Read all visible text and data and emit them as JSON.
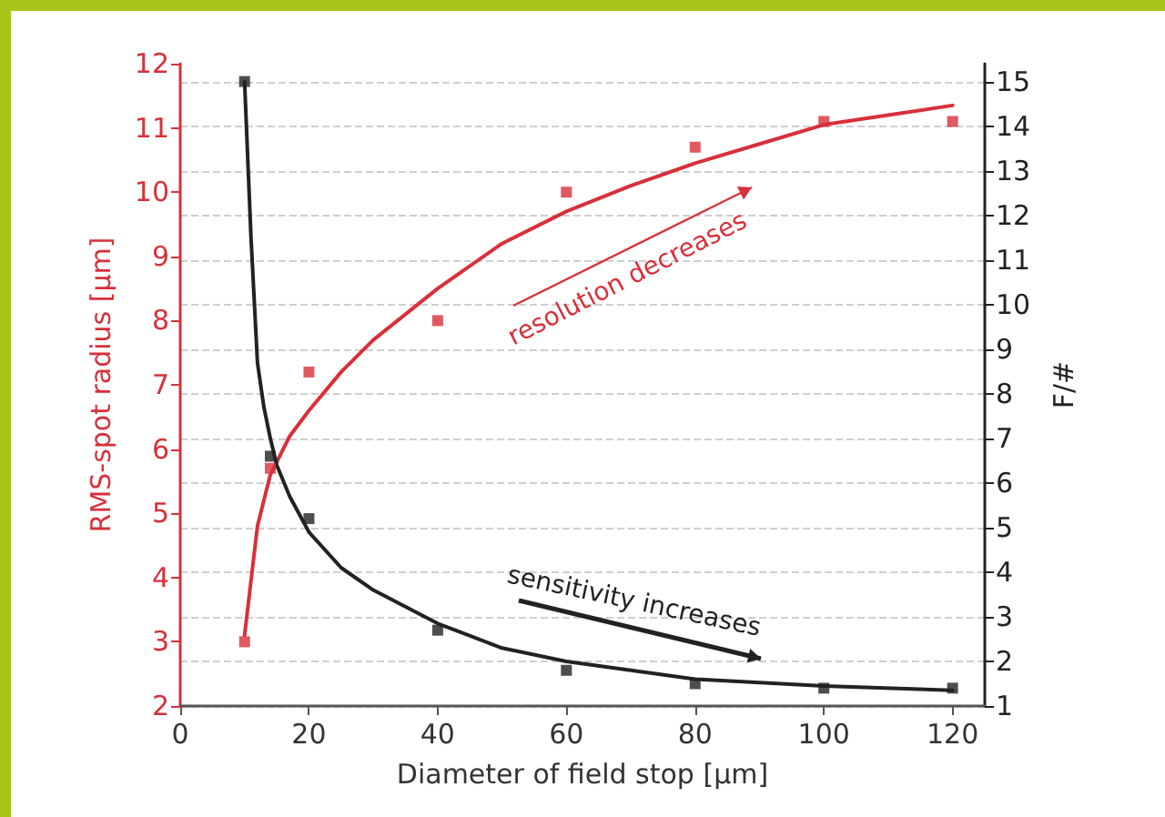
{
  "chart_data": {
    "type": "scatter",
    "xlabel": "Diameter of field stop [µm]",
    "ylabel": "RMS-spot radius [µm]",
    "y2label": "F/#",
    "xlim": [
      0,
      125
    ],
    "xticks": [
      0,
      20,
      40,
      60,
      80,
      100,
      120
    ],
    "ylim": [
      2,
      12
    ],
    "yticks": [
      2,
      3,
      4,
      5,
      6,
      7,
      8,
      9,
      10,
      11,
      12
    ],
    "y2lim": [
      1,
      15.4
    ],
    "y2ticks": [
      1,
      2,
      3,
      4,
      5,
      6,
      7,
      8,
      9,
      10,
      11,
      12,
      13,
      14,
      15
    ],
    "grid": "y",
    "annotations": [
      "resolution decreases",
      "sensitivity increases"
    ],
    "series": [
      {
        "color": "#d8303a",
        "marker": "square",
        "x": [
          10,
          14,
          20,
          40,
          60,
          80,
          100,
          120
        ],
        "values": [
          3.0,
          5.7,
          7.2,
          8,
          10,
          10.7,
          11.1,
          11.1
        ]
      },
      {
        "type": "line",
        "color": "#d8303a",
        "marker": "none",
        "line_style": "solid",
        "x": [
          10,
          12,
          14,
          17,
          20,
          25,
          30,
          40,
          50,
          60,
          70,
          80,
          90,
          100,
          110,
          120
        ],
        "values": [
          3.1,
          4.8,
          5.6,
          6.2,
          6.6,
          7.2,
          7.7,
          8.5,
          9.2,
          9.7,
          10.1,
          10.45,
          10.75,
          11.05,
          11.2,
          11.35
        ]
      },
      {
        "axis": "y2",
        "color": "#222222",
        "marker": "square",
        "x": [
          10,
          14,
          20,
          40,
          60,
          80,
          100,
          120
        ],
        "values": [
          15,
          6.6,
          5.2,
          2.7,
          1.8,
          1.5,
          1.4,
          1.4
        ]
      },
      {
        "type": "line",
        "axis": "y2",
        "color": "#222222",
        "marker": "none",
        "line_style": "solid",
        "x": [
          10,
          11,
          12,
          13,
          14,
          15,
          17,
          20,
          25,
          30,
          40,
          50,
          60,
          80,
          100,
          120
        ],
        "values": [
          15,
          11.5,
          8.7,
          7.7,
          7.0,
          6.4,
          5.7,
          4.9,
          4.1,
          3.6,
          2.85,
          2.3,
          2.0,
          1.6,
          1.45,
          1.35
        ]
      }
    ]
  }
}
